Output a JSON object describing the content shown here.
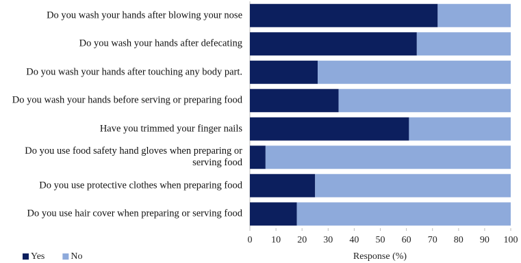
{
  "chart_data": {
    "type": "stacked_barh",
    "x_label": "Response (%)",
    "categories": [
      "Do you wash your hands after blowing your nose",
      "Do you wash your hands after defecating",
      "Do you wash your hands after touching any body part.",
      "Do you wash your hands before serving or preparing food",
      "Have you trimmed your finger nails",
      "Do you use food safety hand gloves when preparing or serving food",
      "Do you use protective clothes when preparing food",
      "Do you use hair cover when preparing or serving food"
    ],
    "series": [
      {
        "name": "Yes",
        "color": "#0c1f5e",
        "values": [
          72,
          64,
          26,
          34,
          61,
          6,
          25,
          18
        ]
      },
      {
        "name": "No",
        "color": "#8eaadb",
        "values": [
          28,
          36,
          74,
          66,
          39,
          94,
          75,
          82
        ]
      }
    ],
    "xlim": [
      0,
      100
    ],
    "xticks": [
      0,
      10,
      20,
      30,
      40,
      50,
      60,
      70,
      80,
      90,
      100
    ],
    "legend": "bottom-left"
  }
}
